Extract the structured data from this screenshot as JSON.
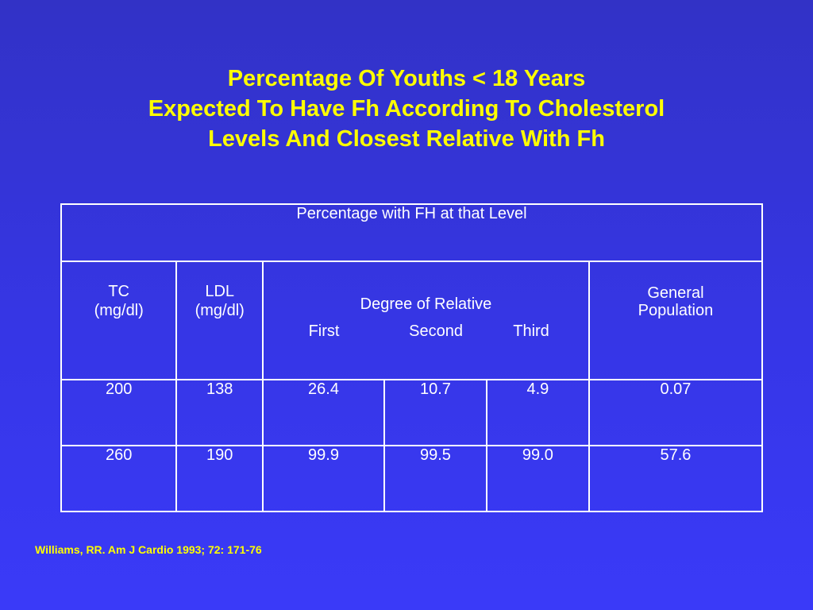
{
  "title": {
    "line1": "Percentage Of Youths < 18 Years",
    "line2": "Expected To Have Fh According To Cholesterol",
    "line3": "Levels And Closest Relative With Fh"
  },
  "table": {
    "top_header": "Percentage with FH at that Level",
    "tc_label": "TC",
    "tc_unit": "(mg/dl)",
    "ldl_label": "LDL",
    "ldl_unit": "(mg/dl)",
    "degree_label": "Degree of Relative",
    "first_label": "First",
    "second_label": "Second",
    "third_label": "Third",
    "general_line1": "General",
    "general_line2": "Population",
    "rows": [
      {
        "tc": "200",
        "ldl": "138",
        "first": "26.4",
        "second": "10.7",
        "third": "4.9",
        "general": "0.07"
      },
      {
        "tc": "260",
        "ldl": "190",
        "first": "99.9",
        "second": "99.5",
        "third": "99.0",
        "general": "57.6"
      }
    ]
  },
  "citation": "Williams, RR. Am J Cardio 1993; 72: 171-76",
  "colors": {
    "background": "#3535e0",
    "title": "#ffff00",
    "table_text": "#ffffff",
    "citation": "#ffff00"
  }
}
